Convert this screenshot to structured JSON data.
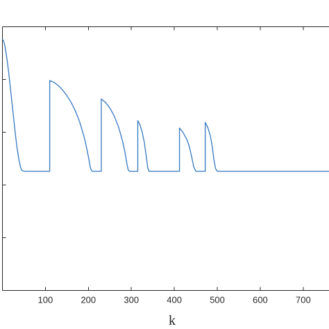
{
  "chart_data": {
    "type": "line",
    "title": "",
    "xlabel": "k",
    "ylabel": "",
    "xlim": [
      0,
      760
    ],
    "ylim": [
      0,
      1
    ],
    "x_ticks": [
      100,
      200,
      300,
      400,
      500,
      600,
      700
    ],
    "y_ticks": [
      0.2,
      0.4,
      0.6,
      0.8
    ],
    "y_tick_labels_visible": false,
    "grid": false,
    "legend": "none",
    "colors": {
      "series": "#3377c0",
      "axes": "#262626"
    },
    "series": [
      {
        "x": [
          0,
          3,
          6,
          9,
          12,
          15,
          18,
          22,
          26,
          30,
          34,
          38,
          42,
          45,
          48,
          52,
          60,
          80,
          100,
          110,
          110,
          120,
          130,
          140,
          150,
          160,
          170,
          180,
          190,
          195,
          200,
          204,
          207,
          210,
          220,
          230,
          230,
          240,
          250,
          260,
          270,
          280,
          285,
          290,
          293,
          296,
          300,
          310,
          315,
          315,
          320,
          325,
          330,
          335,
          338,
          341,
          350,
          400,
          412,
          412,
          420,
          430,
          435,
          440,
          445,
          450,
          460,
          472,
          472,
          478,
          484,
          488,
          492,
          496,
          500,
          520,
          600,
          700,
          760
        ],
        "y": [
          0.953,
          0.945,
          0.925,
          0.895,
          0.86,
          0.82,
          0.775,
          0.715,
          0.655,
          0.595,
          0.54,
          0.5,
          0.468,
          0.456,
          0.453,
          0.452,
          0.452,
          0.452,
          0.452,
          0.452,
          0.796,
          0.789,
          0.777,
          0.76,
          0.739,
          0.713,
          0.68,
          0.638,
          0.583,
          0.548,
          0.508,
          0.471,
          0.455,
          0.452,
          0.452,
          0.452,
          0.726,
          0.713,
          0.692,
          0.662,
          0.621,
          0.564,
          0.525,
          0.478,
          0.456,
          0.452,
          0.452,
          0.452,
          0.452,
          0.644,
          0.628,
          0.602,
          0.563,
          0.505,
          0.467,
          0.452,
          0.452,
          0.452,
          0.452,
          0.616,
          0.6,
          0.57,
          0.545,
          0.51,
          0.47,
          0.452,
          0.452,
          0.452,
          0.637,
          0.618,
          0.585,
          0.549,
          0.498,
          0.462,
          0.452,
          0.452,
          0.452,
          0.452,
          0.452
        ]
      }
    ]
  }
}
